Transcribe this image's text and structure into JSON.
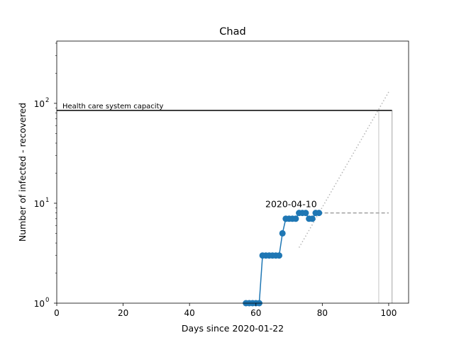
{
  "chart_data": {
    "type": "line",
    "title": "Chad",
    "xlabel": "Days since 2020-01-22",
    "ylabel": "Number of infected - recovered",
    "xlim": [
      0,
      106
    ],
    "ylim": [
      1,
      420
    ],
    "yscale": "log",
    "grid": false,
    "x_ticks": [
      0,
      20,
      40,
      60,
      80,
      100
    ],
    "x_tick_labels": [
      "0",
      "20",
      "40",
      "60",
      "80",
      "100"
    ],
    "y_ticks": [
      1,
      10,
      100
    ],
    "y_tick_labels": [
      "10",
      "10",
      "10"
    ],
    "y_tick_exponents": [
      "0",
      "1",
      "2"
    ],
    "series": [
      {
        "color": "#1f77b4",
        "marker": "circle",
        "x": [
          57,
          58,
          59,
          60,
          61,
          62,
          63,
          64,
          65,
          66,
          67,
          68,
          69,
          70,
          71,
          72,
          73,
          74,
          75,
          76,
          77,
          78,
          79
        ],
        "y": [
          1,
          1,
          1,
          1,
          1,
          3,
          3,
          3,
          3,
          3,
          3,
          5,
          7,
          7,
          7,
          7,
          8,
          8,
          8,
          7,
          7,
          8,
          8
        ]
      }
    ],
    "capacity": {
      "label": "Health care system capacity",
      "value": 85,
      "x_end": 101,
      "color": "#000000"
    },
    "annotation": {
      "text": "2020-04-10",
      "x": 79,
      "y": 8
    },
    "plateau_line": {
      "x": [
        79,
        100
      ],
      "y": 8,
      "color": "#a0a0a0",
      "style": "dashed"
    },
    "trend_line": {
      "x": [
        73,
        100
      ],
      "y": [
        3.6,
        130
      ],
      "color": "#b4b4b4",
      "style": "dotted"
    },
    "vertical_markers": [
      {
        "x": 97,
        "color": "#d8d8d8"
      },
      {
        "x": 101,
        "color": "#c0c0c0"
      }
    ]
  }
}
